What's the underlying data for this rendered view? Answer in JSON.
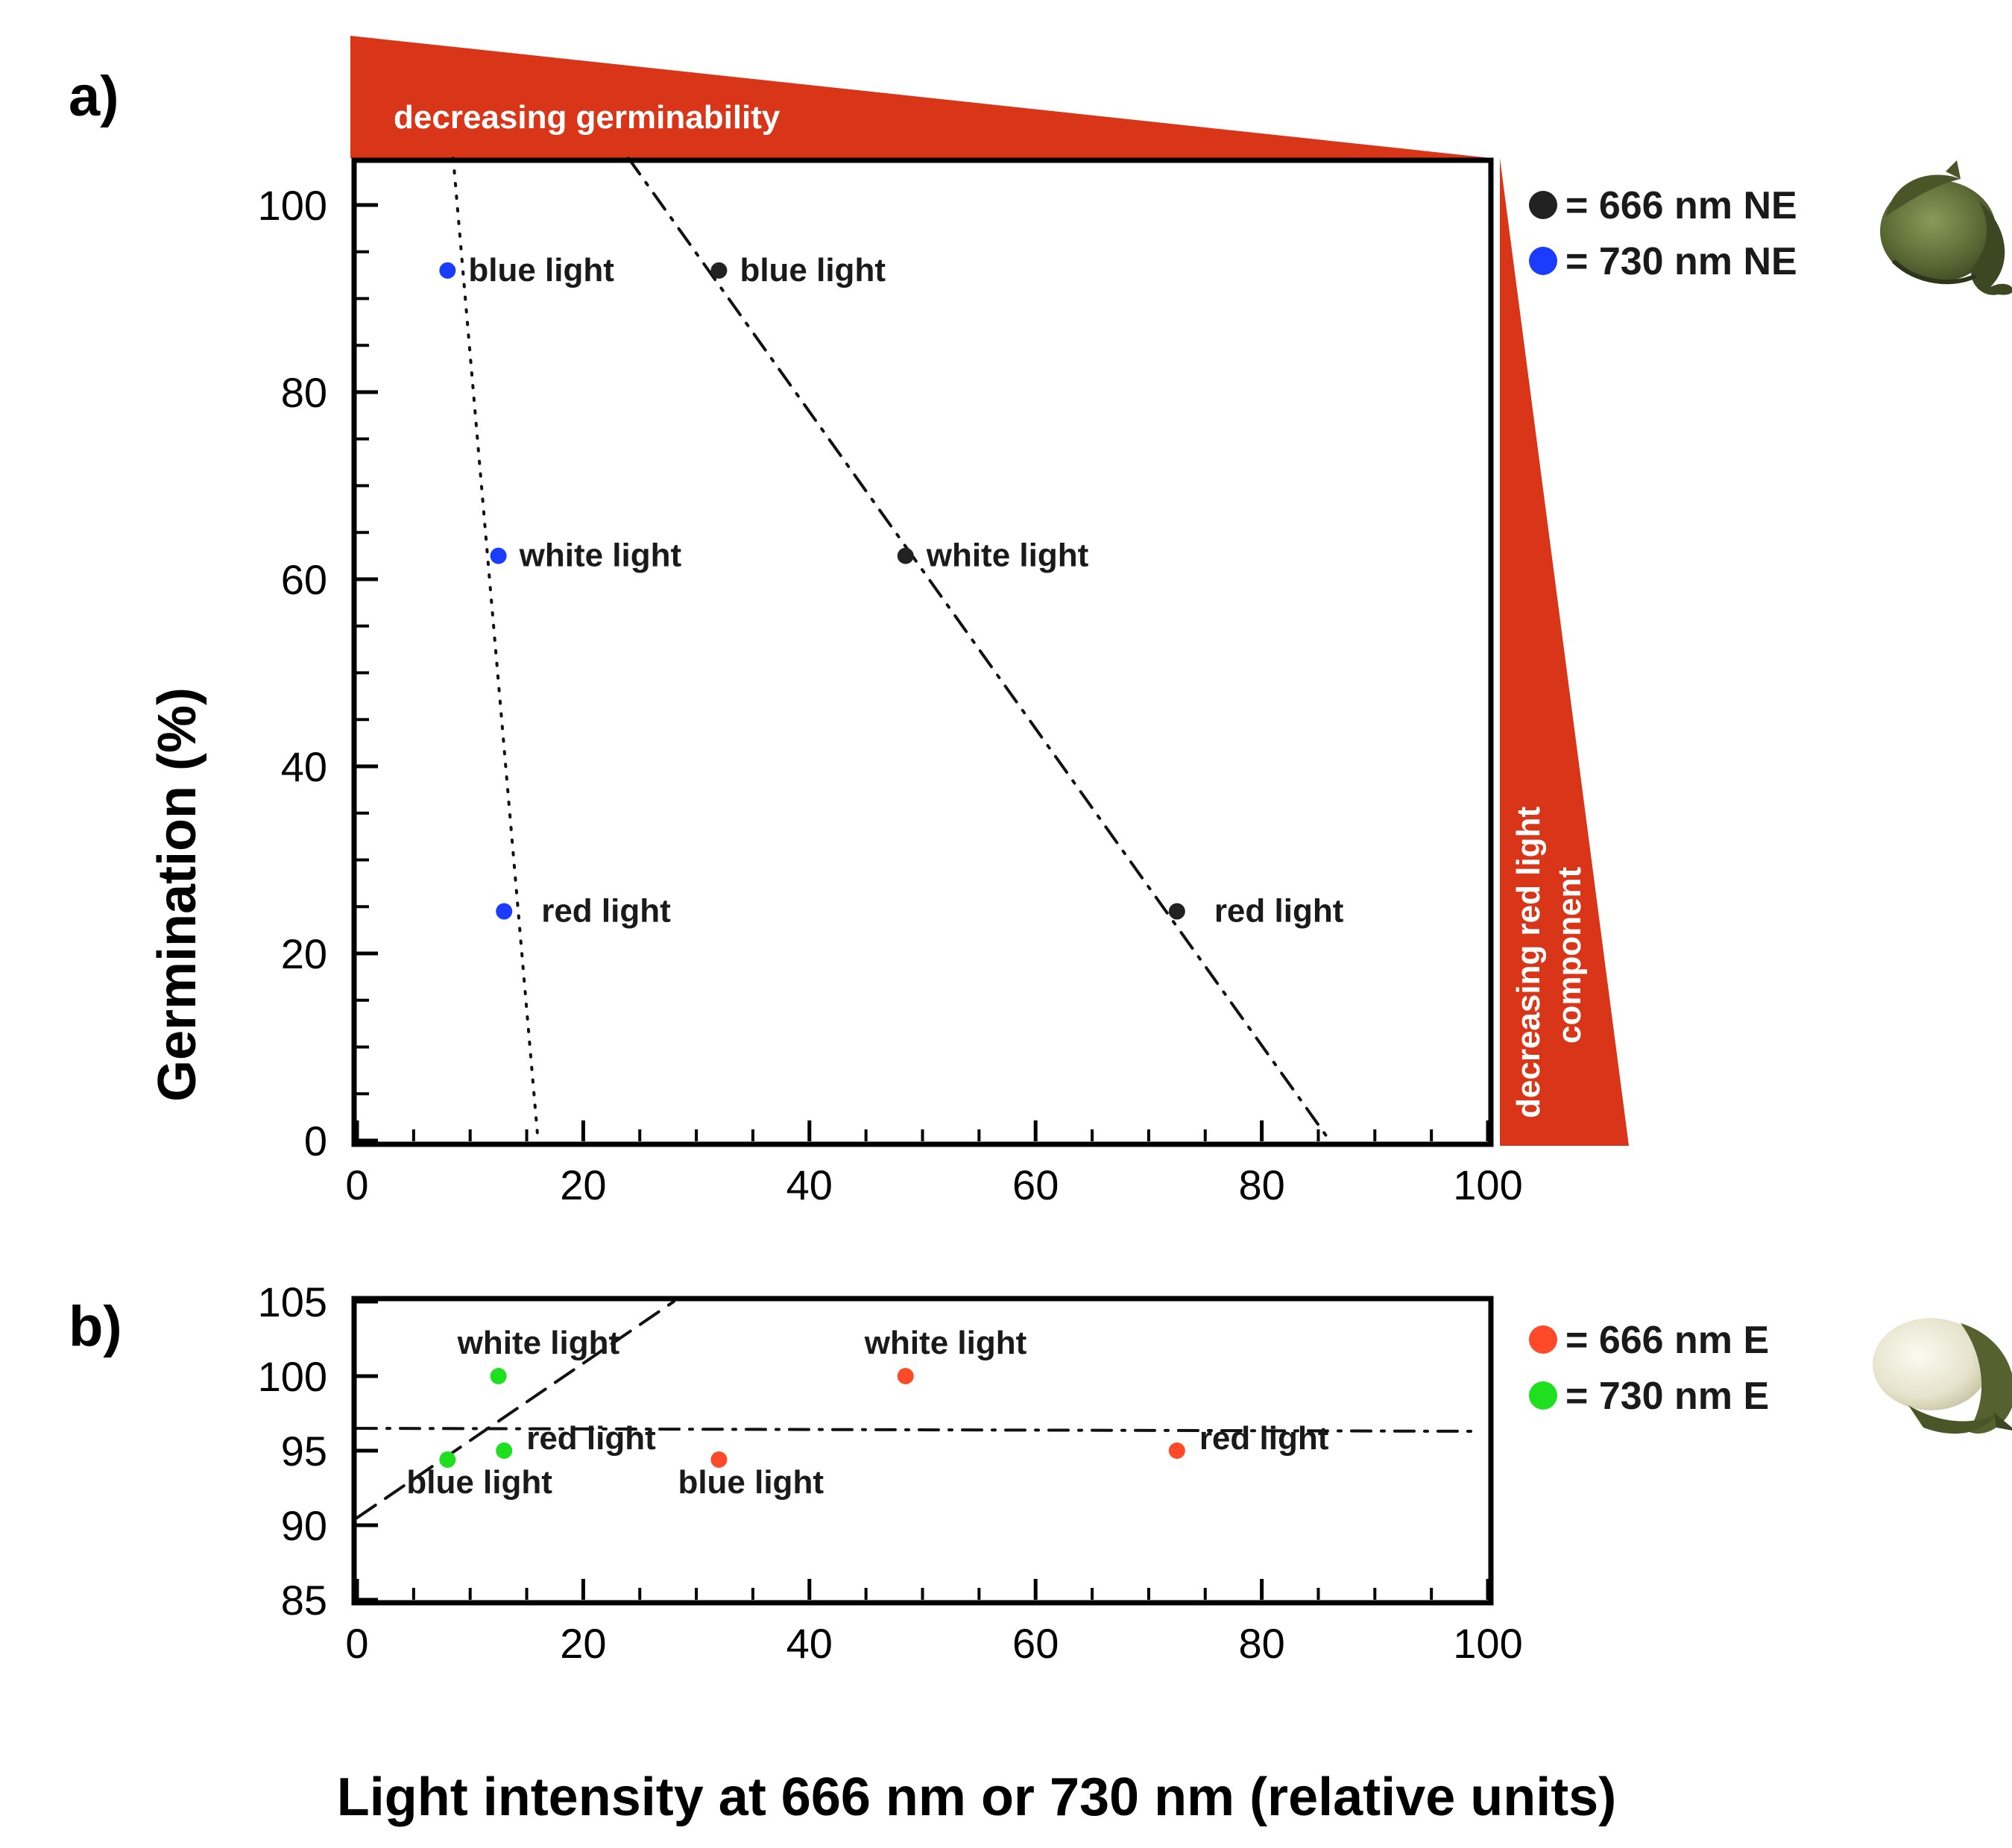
{
  "chart_data": [
    {
      "panel": "a)",
      "type": "scatter",
      "xlabel": "",
      "ylabel": "Germination (%)",
      "xlim": [
        0,
        100
      ],
      "ylim": [
        0,
        100
      ],
      "xticks": [
        0,
        20,
        40,
        60,
        80,
        100
      ],
      "yticks": [
        0,
        20,
        40,
        60,
        80,
        100
      ],
      "grid": false,
      "legend_position": "right",
      "banner_top": "decreasing germinability",
      "banner_right_line1": "decreasing red light",
      "banner_right_line2": "component",
      "series": [
        {
          "name": "= 666 nm NE",
          "color": "#222222",
          "trendline": {
            "from": [
              24,
              105
            ],
            "to": [
              86,
              0
            ],
            "style": "dashdot"
          },
          "points": [
            {
              "x": 32,
              "y": 93,
              "label": "blue light"
            },
            {
              "x": 48.5,
              "y": 62.5,
              "label": "white light"
            },
            {
              "x": 72.5,
              "y": 24.5,
              "label": "red light"
            }
          ]
        },
        {
          "name": "= 730 nm NE",
          "color": "#1a3cff",
          "trendline": {
            "from": [
              8.5,
              105
            ],
            "to": [
              16,
              0
            ],
            "style": "dotted"
          },
          "points": [
            {
              "x": 8,
              "y": 93,
              "label": "blue light"
            },
            {
              "x": 12.5,
              "y": 62.5,
              "label": "white light"
            },
            {
              "x": 13,
              "y": 24.5,
              "label": "red light"
            }
          ]
        }
      ]
    },
    {
      "panel": "b)",
      "type": "scatter",
      "xlabel": "Light intensity at 666 nm or 730 nm (relative units)",
      "ylabel": "",
      "xlim": [
        0,
        100
      ],
      "ylim": [
        85,
        105
      ],
      "xticks": [
        0,
        20,
        40,
        60,
        80,
        100
      ],
      "yticks": [
        85,
        90,
        95,
        100,
        105
      ],
      "grid": false,
      "legend_position": "right",
      "series": [
        {
          "name": "= 666 nm E",
          "color": "#ff4a2a",
          "trendline": {
            "from": [
              0,
              96.5
            ],
            "to": [
              99,
              96.3
            ],
            "style": "dashdot"
          },
          "points": [
            {
              "x": 48.5,
              "y": 100,
              "label": "white light"
            },
            {
              "x": 32,
              "y": 94.4,
              "label": "blue light"
            },
            {
              "x": 72.5,
              "y": 95,
              "label": "red light"
            }
          ]
        },
        {
          "name": "= 730 nm E",
          "color": "#1fe01f",
          "trendline": {
            "from": [
              0,
              90.5
            ],
            "to": [
              28,
              105
            ],
            "style": "dashed"
          },
          "points": [
            {
              "x": 12.5,
              "y": 100,
              "label": "white light"
            },
            {
              "x": 8,
              "y": 94.4,
              "label": "blue light"
            },
            {
              "x": 13,
              "y": 95,
              "label": "red light"
            }
          ]
        }
      ]
    }
  ]
}
